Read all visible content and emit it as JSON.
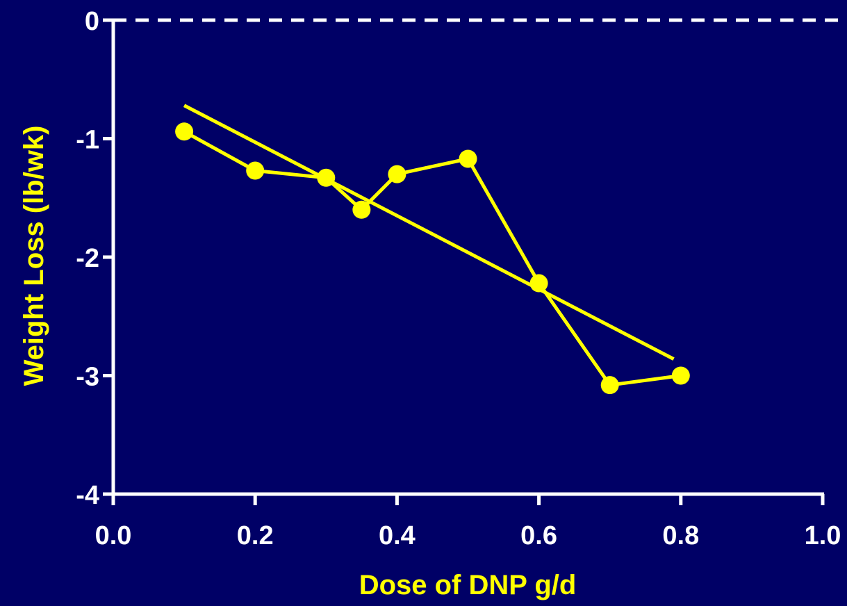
{
  "colors": {
    "background": "#000066",
    "axis": "#FFFFFF",
    "series": "#FFFF00",
    "axis_label": "#FFFF00",
    "tick_label": "#FFFFFF",
    "reference_line": "#FFFFFF"
  },
  "chart_data": {
    "type": "line",
    "title": "",
    "xlabel": "Dose of DNP g/d",
    "ylabel": "Weight Loss (lb/wk)",
    "xlim": [
      0.0,
      1.0
    ],
    "ylim": [
      -4,
      0
    ],
    "x_ticks": [
      0.0,
      0.2,
      0.4,
      0.6,
      0.8,
      1.0
    ],
    "x_tick_labels": [
      "0.0",
      "0.2",
      "0.4",
      "0.6",
      "0.8",
      "1.0"
    ],
    "y_ticks": [
      0,
      -1,
      -2,
      -3,
      -4
    ],
    "y_tick_labels": [
      "0",
      "-1",
      "-2",
      "-3",
      "-4"
    ],
    "grid": false,
    "reference_line": {
      "y": 0,
      "style": "dashed"
    },
    "series": [
      {
        "x": [
          0.1,
          0.2,
          0.3,
          0.35,
          0.4,
          0.5,
          0.6,
          0.7,
          0.8
        ],
        "y": [
          -0.94,
          -1.27,
          -1.33,
          -1.6,
          -1.3,
          -1.17,
          -2.22,
          -3.08,
          -3.0
        ],
        "markers": true
      }
    ],
    "trend_line": {
      "x": [
        0.1,
        0.79
      ],
      "y": [
        -0.72,
        -2.86
      ]
    }
  }
}
